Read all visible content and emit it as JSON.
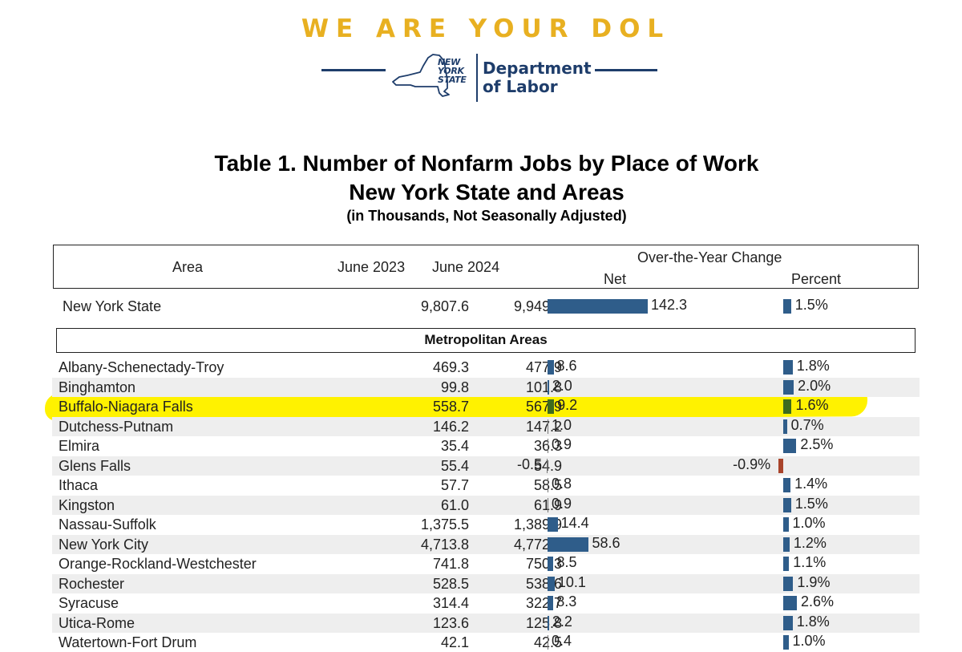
{
  "header": {
    "slogan": "WE ARE YOUR DOL",
    "logo_state_lines": [
      "NEW",
      "YORK",
      "STATE"
    ],
    "logo_dept_lines": [
      "Department",
      "of Labor"
    ],
    "colors": {
      "slogan": "#e8b021",
      "logo": "#1e3d6b"
    }
  },
  "title": {
    "line1": "Table 1. Number of Nonfarm Jobs by Place of Work",
    "line2": "New York State and Areas",
    "subtitle": "(in Thousands, Not Seasonally Adjusted)"
  },
  "columns": {
    "area": "Area",
    "june2023": "June 2023",
    "june2024": "June 2024",
    "change": "Over-the-Year Change",
    "net": "Net",
    "percent": "Percent"
  },
  "state_row": {
    "area": "New York State",
    "june2023": "9,807.6",
    "june2024": "9,949.9",
    "net": "142.3",
    "percent": "1.5%"
  },
  "section_label": "Metropolitan Areas",
  "rows": [
    {
      "area": "Albany-Schenectady-Troy",
      "june2023": "469.3",
      "june2024": "477.9",
      "net": "8.6",
      "percent": "1.8%"
    },
    {
      "area": "Binghamton",
      "june2023": "99.8",
      "june2024": "101.8",
      "net": "2.0",
      "percent": "2.0%"
    },
    {
      "area": "Buffalo-Niagara Falls",
      "june2023": "558.7",
      "june2024": "567.9",
      "net": "9.2",
      "percent": "1.6%",
      "highlighted": true
    },
    {
      "area": "Dutchess-Putnam",
      "june2023": "146.2",
      "june2024": "147.2",
      "net": "1.0",
      "percent": "0.7%"
    },
    {
      "area": "Elmira",
      "june2023": "35.4",
      "june2024": "36.3",
      "net": "0.9",
      "percent": "2.5%"
    },
    {
      "area": "Glens Falls",
      "june2023": "55.4",
      "june2024": "54.9",
      "net": "-0.5",
      "percent": "-0.9%"
    },
    {
      "area": "Ithaca",
      "june2023": "57.7",
      "june2024": "58.5",
      "net": "0.8",
      "percent": "1.4%"
    },
    {
      "area": "Kingston",
      "june2023": "61.0",
      "june2024": "61.9",
      "net": "0.9",
      "percent": "1.5%"
    },
    {
      "area": "Nassau-Suffolk",
      "june2023": "1,375.5",
      "june2024": "1,389.9",
      "net": "14.4",
      "percent": "1.0%"
    },
    {
      "area": "New York City",
      "june2023": "4,713.8",
      "june2024": "4,772.4",
      "net": "58.6",
      "percent": "1.2%"
    },
    {
      "area": "Orange-Rockland-Westchester",
      "june2023": "741.8",
      "june2024": "750.3",
      "net": "8.5",
      "percent": "1.1%"
    },
    {
      "area": "Rochester",
      "june2023": "528.5",
      "june2024": "538.6",
      "net": "10.1",
      "percent": "1.9%"
    },
    {
      "area": "Syracuse",
      "june2023": "314.4",
      "june2024": "322.7",
      "net": "8.3",
      "percent": "2.6%"
    },
    {
      "area": "Utica-Rome",
      "june2023": "123.6",
      "june2024": "125.8",
      "net": "2.2",
      "percent": "1.8%"
    },
    {
      "area": "Watertown-Fort Drum",
      "june2023": "42.1",
      "june2024": "42.5",
      "net": "0.4",
      "percent": "1.0%"
    }
  ],
  "colors": {
    "positive_bar": "#2f5d8a",
    "negative_bar": "#a9442b",
    "highlight_bar": "#3d6b1e",
    "highlight": "#fff200",
    "row_shade": "#eeeeee"
  }
}
